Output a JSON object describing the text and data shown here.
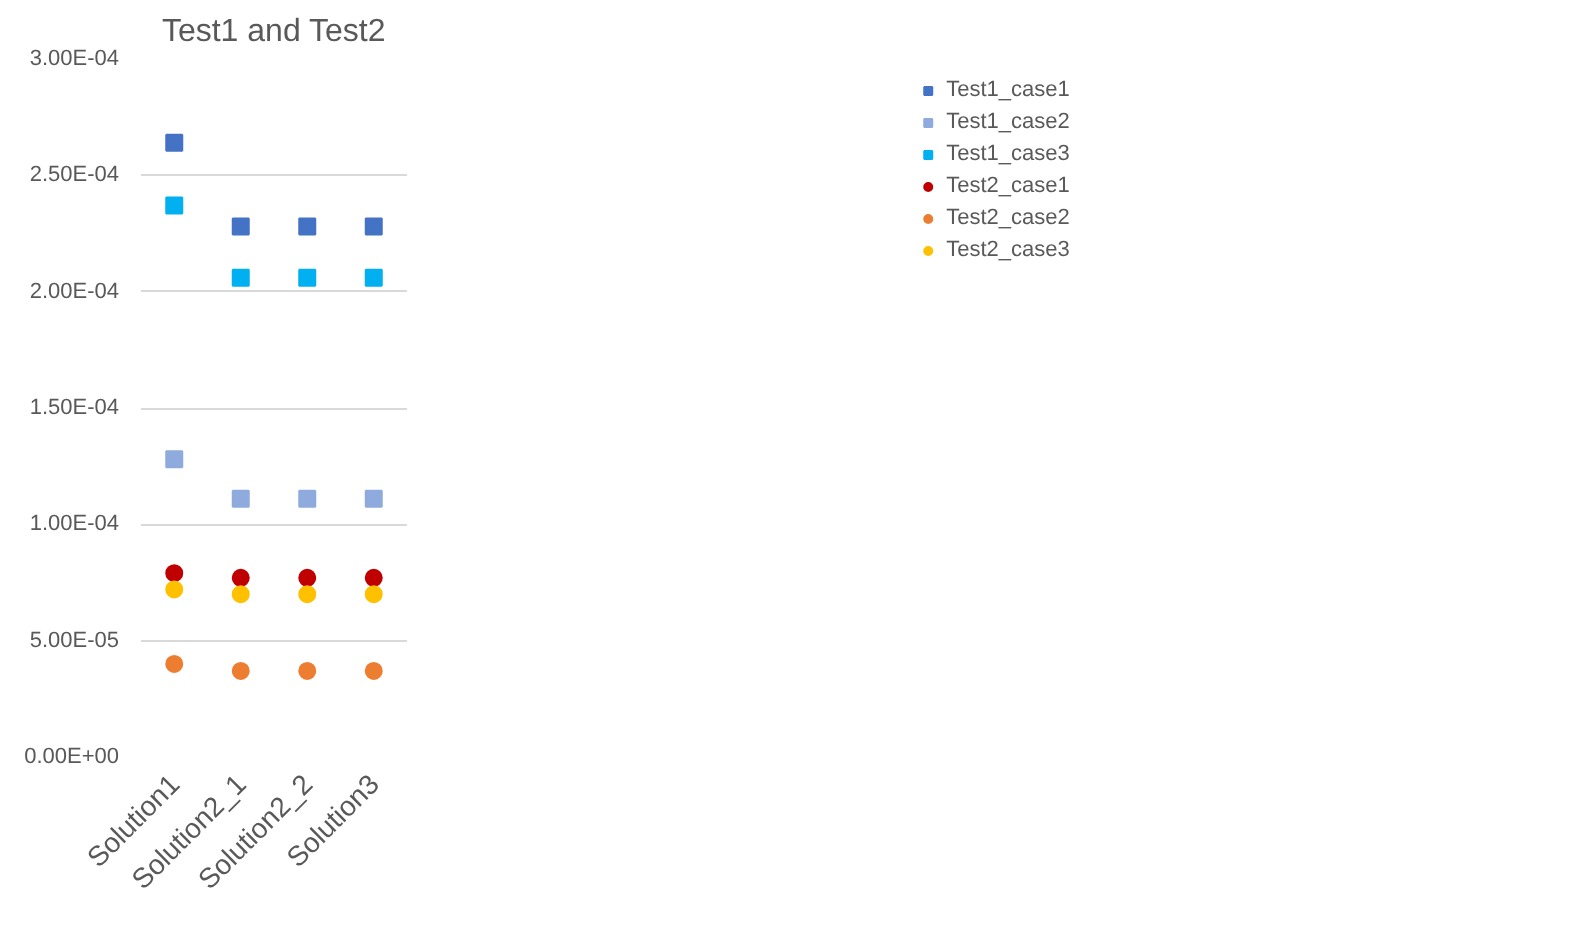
{
  "chart_data": {
    "type": "scatter",
    "title": "Test1 and Test2",
    "categories": [
      "Solution1",
      "Solution2_1",
      "Solution2_2",
      "Solution3"
    ],
    "series": [
      {
        "name": "Test1_case1",
        "color": "#4472c4",
        "marker": "square",
        "values": [
          0.000264,
          0.000228,
          0.000228,
          0.000228
        ]
      },
      {
        "name": "Test1_case2",
        "color": "#8faadc",
        "marker": "square",
        "values": [
          0.000128,
          0.000111,
          0.000111,
          0.000111
        ]
      },
      {
        "name": "Test1_case3",
        "color": "#00b0f0",
        "marker": "square",
        "values": [
          0.000237,
          0.000206,
          0.000206,
          0.000206
        ]
      },
      {
        "name": "Test2_case1",
        "color": "#c00000",
        "marker": "circle",
        "values": [
          7.9e-05,
          7.7e-05,
          7.7e-05,
          7.7e-05
        ]
      },
      {
        "name": "Test2_case2",
        "color": "#ed7d31",
        "marker": "circle",
        "values": [
          4e-05,
          3.7e-05,
          3.7e-05,
          3.7e-05
        ]
      },
      {
        "name": "Test2_case3",
        "color": "#ffc000",
        "marker": "circle",
        "values": [
          7.2e-05,
          7e-05,
          7e-05,
          7e-05
        ]
      }
    ],
    "ylim": [
      0,
      0.0003
    ],
    "yticks": [
      {
        "value": 0,
        "label": "0.00E+00"
      },
      {
        "value": 5e-05,
        "label": "5.00E-05"
      },
      {
        "value": 0.0001,
        "label": "1.00E-04"
      },
      {
        "value": 0.00015,
        "label": "1.50E-04"
      },
      {
        "value": 0.0002,
        "label": "2.00E-04"
      },
      {
        "value": 0.00025,
        "label": "2.50E-04"
      },
      {
        "value": 0.0003,
        "label": "3.00E-04"
      }
    ],
    "grid": "y",
    "legend": "right"
  }
}
